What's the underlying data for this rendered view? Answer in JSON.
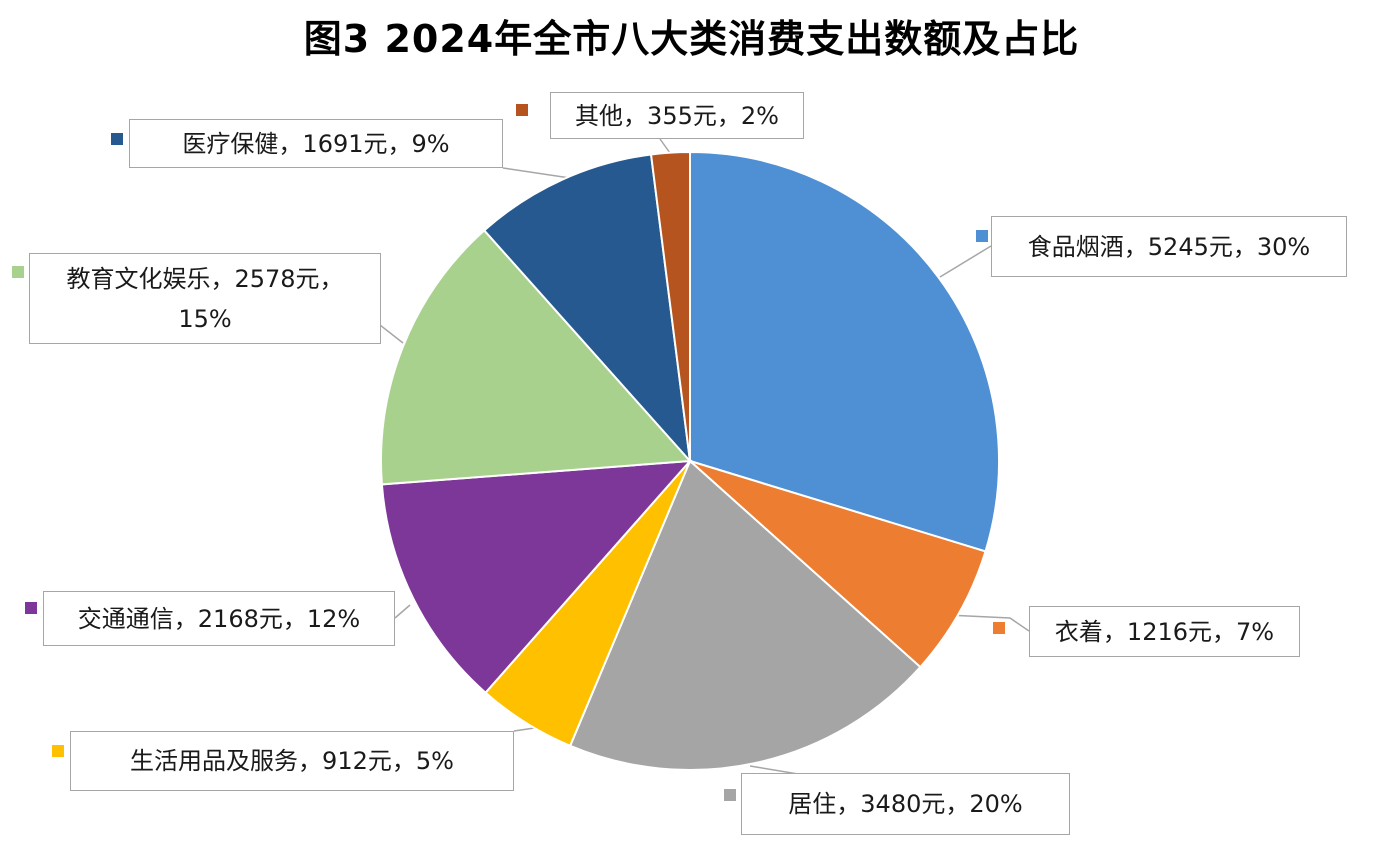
{
  "chart_data": {
    "type": "pie",
    "title": "图3 2024年全市八大类消费支出数额及占比",
    "unit": "元",
    "slices": [
      {
        "name": "食品烟酒",
        "value": 5245,
        "percent": 30,
        "label": "食品烟酒，5245元，30%",
        "color": "#4f8fd4"
      },
      {
        "name": "衣着",
        "value": 1216,
        "percent": 7,
        "label": "衣着，1216元，7%",
        "color": "#ed7d31"
      },
      {
        "name": "居住",
        "value": 3480,
        "percent": 20,
        "label": "居住，3480元，20%",
        "color": "#a5a5a5"
      },
      {
        "name": "生活用品及服务",
        "value": 912,
        "percent": 5,
        "label": "生活用品及服务，912元，5%",
        "color": "#ffc000"
      },
      {
        "name": "交通通信",
        "value": 2168,
        "percent": 12,
        "label": "交通通信，2168元，12%",
        "color": "#7d3799"
      },
      {
        "name": "教育文化娱乐",
        "value": 2578,
        "percent": 15,
        "label": "教育文化娱乐，2578元，15%",
        "color": "#a9d18e"
      },
      {
        "name": "医疗保健",
        "value": 1691,
        "percent": 9,
        "label": "医疗保健，1691元，9%",
        "color": "#25598f"
      },
      {
        "name": "其他",
        "value": 355,
        "percent": 2,
        "label": "其他，355元，2%",
        "color": "#b5541f"
      }
    ]
  }
}
